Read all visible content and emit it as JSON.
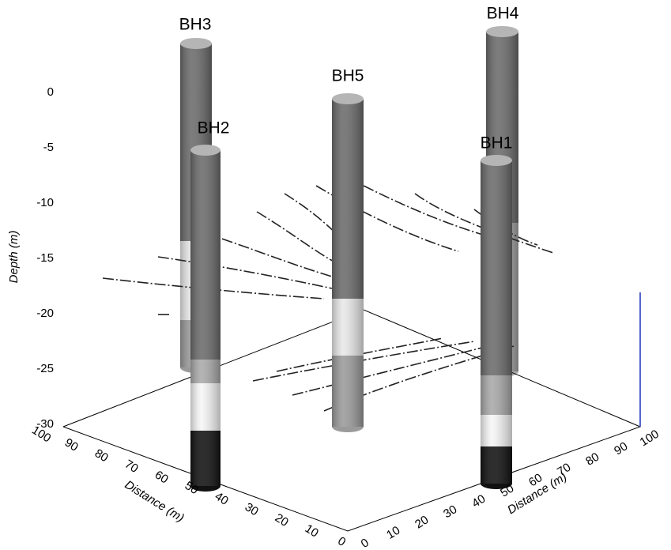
{
  "boreholes": [
    {
      "label": "BH1"
    },
    {
      "label": "BH2"
    },
    {
      "label": "BH3"
    },
    {
      "label": "BH4"
    },
    {
      "label": "BH5"
    }
  ],
  "axes": {
    "depth": {
      "label": "Depth (m)",
      "ticks": [
        "0",
        "-5",
        "-10",
        "-15",
        "-20",
        "-25",
        "-30"
      ]
    },
    "distance_left": {
      "label": "Distance (m)",
      "ticks": [
        "0",
        "10",
        "20",
        "30",
        "40",
        "50",
        "60",
        "70",
        "80",
        "90",
        "100"
      ]
    },
    "distance_right": {
      "label": "Distance (m)",
      "ticks": [
        "0",
        "10",
        "20",
        "30",
        "40",
        "50",
        "60",
        "70",
        "80",
        "90",
        "100"
      ]
    }
  }
}
